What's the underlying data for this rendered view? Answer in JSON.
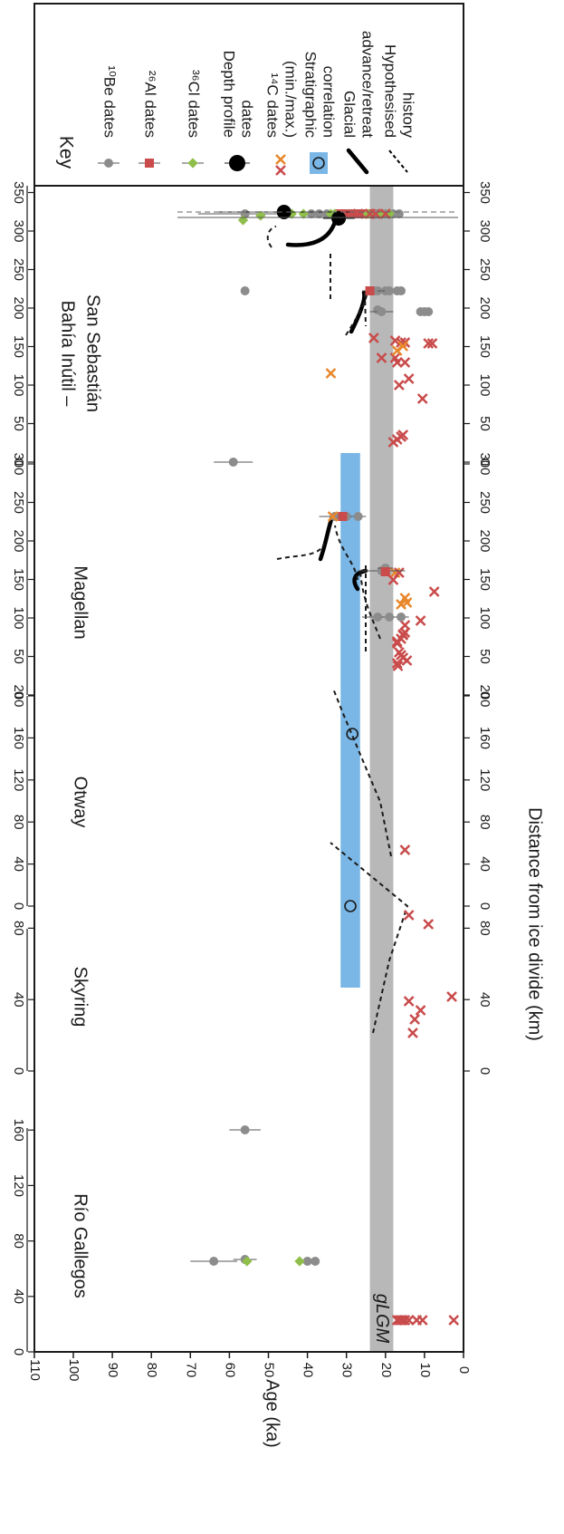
{
  "chart_data": {
    "type": "scatter",
    "orientation": "rotated-90",
    "ylabel": "Age (ka)",
    "xlabel": "Distance from ice divide (km)",
    "age_axis": {
      "ticks": [
        "0",
        "10",
        "20",
        "30",
        "40",
        "50",
        "60",
        "70",
        "80",
        "90",
        "100",
        "110"
      ],
      "range": [
        0,
        110
      ]
    },
    "glgm_label": "gLGM",
    "glgm_band": [
      18,
      24
    ],
    "stratigraphic_band": [
      26.5,
      31.5
    ],
    "key": {
      "title": "Key",
      "items": [
        {
          "label": "¹⁰Be dates",
          "color": "#8c8c8c",
          "symbol": "circle"
        },
        {
          "label": "²⁶Al dates",
          "color": "#c94b4b",
          "symbol": "square"
        },
        {
          "label": "³⁶Cl dates",
          "color": "#8fbf4a",
          "symbol": "diamond"
        },
        {
          "label": "Depth profile dates",
          "color": "#000000",
          "symbol": "big-circle"
        },
        {
          "label": "¹⁴C dates (min./max.)",
          "color": "#c94b4b",
          "color2": "#e8872b",
          "symbol": "cross"
        },
        {
          "label": "Stratigraphic correlation",
          "color": "#7ab7e6",
          "symbol": "ring-box"
        },
        {
          "label": "Glacial advance/retreat",
          "color": "#000000",
          "symbol": "thick-line"
        },
        {
          "label": "Hypothesised history",
          "color": "#000000",
          "symbol": "dashed-line"
        }
      ]
    },
    "panels": [
      {
        "name": "Río Gallegos",
        "ticks": [
          "0",
          "40",
          "80",
          "120",
          "160"
        ],
        "range": [
          0,
          160
        ]
      },
      {
        "name": "Skyring",
        "ticks": [
          "0",
          "40",
          "80"
        ],
        "range": [
          0,
          80
        ]
      },
      {
        "name": "Otway",
        "ticks": [
          "0",
          "40",
          "80",
          "120",
          "160",
          "200"
        ],
        "range": [
          0,
          200
        ]
      },
      {
        "name": "Magellan",
        "ticks": [
          "0",
          "50",
          "100",
          "150",
          "200",
          "250",
          "300"
        ],
        "range": [
          0,
          300
        ]
      },
      {
        "name": "Bahía Inútil – San Sebastián",
        "ticks": [
          "0",
          "50",
          "100",
          "150",
          "200",
          "250",
          "300",
          "350"
        ],
        "range": [
          0,
          350
        ]
      }
    ]
  }
}
